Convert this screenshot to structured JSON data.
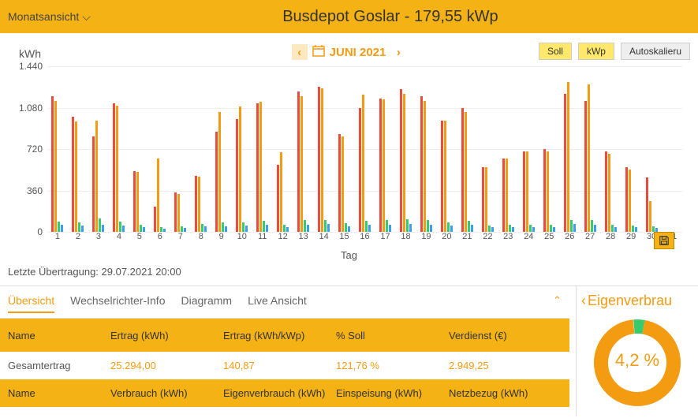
{
  "header": {
    "view_label": "Monatsansicht",
    "title": "Busdepot Goslar - 179,55 kWp"
  },
  "chart": {
    "ylabel": "kWh",
    "date_label": "JUNI 2021",
    "buttons": {
      "soll": "Soll",
      "kwp": "kWp",
      "autoscale": "Autoskalieru"
    },
    "ylim": [
      0,
      1440
    ],
    "yticks": [
      0,
      360,
      720,
      1080,
      1440
    ],
    "ytick_labels": [
      "0",
      "360",
      "720",
      "1.080",
      "1.440"
    ],
    "xlabel": "Tag",
    "colors": {
      "series_a": "#e74c3c",
      "series_b": "#f39c12",
      "series_c": "#3ac96b",
      "series_d": "#3aa0e8",
      "grid": "#eeeeee",
      "background": "#ffffff"
    },
    "days": [
      {
        "d": 1,
        "a": 1180,
        "b": 1140,
        "c": 90,
        "d2": 60
      },
      {
        "d": 2,
        "a": 1000,
        "b": 960,
        "c": 80,
        "d2": 55
      },
      {
        "d": 3,
        "a": 830,
        "b": 970,
        "c": 120,
        "d2": 60
      },
      {
        "d": 4,
        "a": 1120,
        "b": 1100,
        "c": 90,
        "d2": 55
      },
      {
        "d": 5,
        "a": 530,
        "b": 520,
        "c": 60,
        "d2": 40
      },
      {
        "d": 6,
        "a": 220,
        "b": 640,
        "c": 40,
        "d2": 30
      },
      {
        "d": 7,
        "a": 340,
        "b": 330,
        "c": 50,
        "d2": 35
      },
      {
        "d": 8,
        "a": 490,
        "b": 480,
        "c": 70,
        "d2": 45
      },
      {
        "d": 9,
        "a": 870,
        "b": 1040,
        "c": 80,
        "d2": 50
      },
      {
        "d": 10,
        "a": 980,
        "b": 1090,
        "c": 85,
        "d2": 55
      },
      {
        "d": 11,
        "a": 1120,
        "b": 1130,
        "c": 95,
        "d2": 60
      },
      {
        "d": 12,
        "a": 580,
        "b": 690,
        "c": 60,
        "d2": 40
      },
      {
        "d": 13,
        "a": 1220,
        "b": 1180,
        "c": 100,
        "d2": 65
      },
      {
        "d": 14,
        "a": 1260,
        "b": 1250,
        "c": 105,
        "d2": 68
      },
      {
        "d": 15,
        "a": 850,
        "b": 830,
        "c": 75,
        "d2": 50
      },
      {
        "d": 16,
        "a": 1080,
        "b": 1190,
        "c": 95,
        "d2": 62
      },
      {
        "d": 17,
        "a": 1160,
        "b": 1150,
        "c": 100,
        "d2": 65
      },
      {
        "d": 18,
        "a": 1240,
        "b": 1200,
        "c": 108,
        "d2": 70
      },
      {
        "d": 19,
        "a": 1180,
        "b": 1140,
        "c": 100,
        "d2": 65
      },
      {
        "d": 20,
        "a": 970,
        "b": 970,
        "c": 85,
        "d2": 55
      },
      {
        "d": 21,
        "a": 1080,
        "b": 1040,
        "c": 95,
        "d2": 62
      },
      {
        "d": 22,
        "a": 560,
        "b": 560,
        "c": 55,
        "d2": 38
      },
      {
        "d": 23,
        "a": 640,
        "b": 640,
        "c": 60,
        "d2": 40
      },
      {
        "d": 24,
        "a": 700,
        "b": 700,
        "c": 65,
        "d2": 42
      },
      {
        "d": 25,
        "a": 720,
        "b": 700,
        "c": 62,
        "d2": 40
      },
      {
        "d": 26,
        "a": 1200,
        "b": 1300,
        "c": 105,
        "d2": 68
      },
      {
        "d": 27,
        "a": 1140,
        "b": 1280,
        "c": 100,
        "d2": 65
      },
      {
        "d": 28,
        "a": 700,
        "b": 680,
        "c": 60,
        "d2": 40
      },
      {
        "d": 29,
        "a": 560,
        "b": 540,
        "c": 55,
        "d2": 38
      },
      {
        "d": 30,
        "a": 470,
        "b": 270,
        "c": 45,
        "d2": 32
      },
      {
        "d": 31,
        "a": 0,
        "b": 0,
        "c": 0,
        "d2": 0
      }
    ]
  },
  "last_update": "Letzte Übertragung: 29.07.2021 20:00",
  "tabs": {
    "overview": "Übersicht",
    "inverter": "Wechselrichter-Info",
    "diagram": "Diagramm",
    "live": "Live Ansicht"
  },
  "table1": {
    "headers": [
      "Name",
      "Ertrag (kWh)",
      "Ertrag (kWh/kWp)",
      "% Soll",
      "Verdienst (€)"
    ],
    "row_label": "Gesamtertrag",
    "values": [
      "25.294,00",
      "140,87",
      "121,76 %",
      "2.949,25"
    ]
  },
  "table2": {
    "headers": [
      "Name",
      "Verbrauch (kWh)",
      "Eigenverbrauch (kWh)",
      "Einspeisung (kWh)",
      "Netzbezug (kWh)"
    ]
  },
  "right": {
    "title": "Eigenverbrau",
    "percent": "4,2 %",
    "donut_colors": {
      "main": "#f39c12",
      "accent": "#3ac96b",
      "track": "#eee"
    }
  }
}
